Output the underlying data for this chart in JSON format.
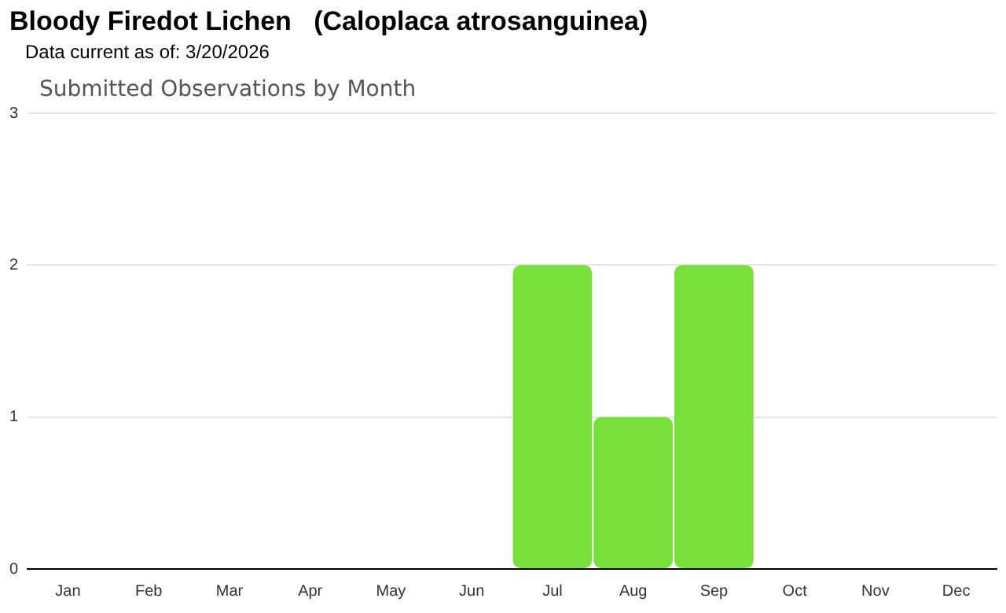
{
  "chart_data": {
    "type": "bar",
    "title": "Bloody Firedot Lichen   (Caloplaca atrosanguinea)",
    "subtitle": "Data current as of: 3/20/2026",
    "annotations": [
      "Submitted Observations by Month"
    ],
    "categories": [
      "Jan",
      "Feb",
      "Mar",
      "Apr",
      "May",
      "Jun",
      "Jul",
      "Aug",
      "Sep",
      "Oct",
      "Nov",
      "Dec"
    ],
    "values": [
      0,
      0,
      0,
      0,
      0,
      0,
      2,
      1,
      2,
      0,
      0,
      0
    ],
    "color": "#77e03a",
    "ylim": [
      0,
      3
    ],
    "yticks": [
      0,
      1,
      2,
      3
    ],
    "grid": "y",
    "legend": false
  }
}
